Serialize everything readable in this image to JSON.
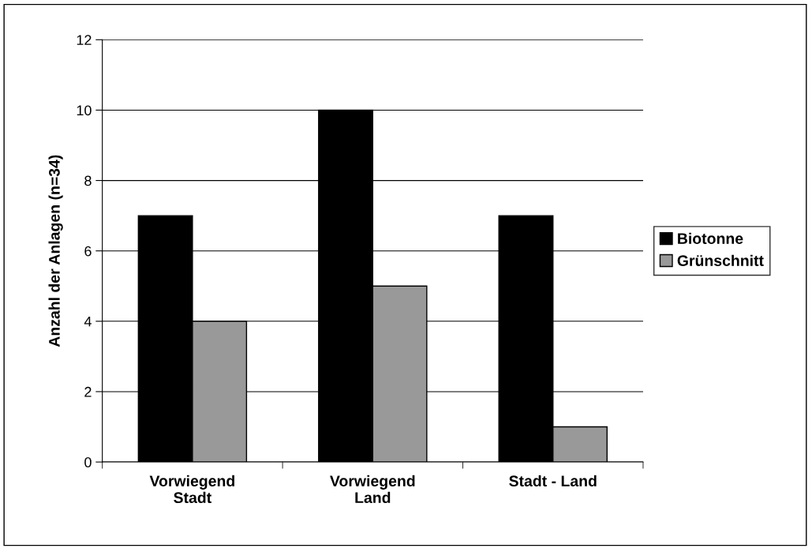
{
  "chart_data": {
    "type": "bar",
    "ylabel": "Anzahl der Anlagen (n=34)",
    "categories": [
      "Vorwiegend\nStadt",
      "Vorwiegend\nLand",
      "Stadt - Land"
    ],
    "series": [
      {
        "name": "Biotonne",
        "color": "#000000",
        "values": [
          7,
          10,
          7
        ]
      },
      {
        "name": "Grünschnitt",
        "color": "#999999",
        "values": [
          4,
          5,
          1
        ]
      }
    ],
    "ylim": [
      0,
      12
    ],
    "yticks": [
      0,
      2,
      4,
      6,
      8,
      10,
      12
    ],
    "grid": "y",
    "legend": "right"
  }
}
